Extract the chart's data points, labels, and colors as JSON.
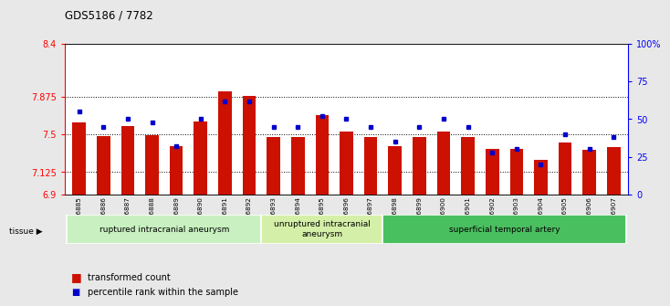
{
  "title": "GDS5186 / 7782",
  "samples": [
    "GSM1306885",
    "GSM1306886",
    "GSM1306887",
    "GSM1306888",
    "GSM1306889",
    "GSM1306890",
    "GSM1306891",
    "GSM1306892",
    "GSM1306893",
    "GSM1306894",
    "GSM1306895",
    "GSM1306896",
    "GSM1306897",
    "GSM1306898",
    "GSM1306899",
    "GSM1306900",
    "GSM1306901",
    "GSM1306902",
    "GSM1306903",
    "GSM1306904",
    "GSM1306905",
    "GSM1306906",
    "GSM1306907"
  ],
  "red_values": [
    7.62,
    7.48,
    7.58,
    7.49,
    7.38,
    7.63,
    7.93,
    7.88,
    7.47,
    7.47,
    7.69,
    7.53,
    7.47,
    7.38,
    7.47,
    7.53,
    7.47,
    7.35,
    7.35,
    7.24,
    7.42,
    7.34,
    7.37
  ],
  "blue_pct": [
    55,
    45,
    50,
    48,
    32,
    50,
    62,
    62,
    45,
    45,
    52,
    50,
    45,
    35,
    45,
    50,
    45,
    28,
    30,
    20,
    40,
    30,
    38
  ],
  "ylim_left": [
    6.9,
    8.4
  ],
  "ylim_right": [
    0,
    100
  ],
  "grid_lines": [
    7.125,
    7.5,
    7.875
  ],
  "bar_color": "#cc1100",
  "blue_color": "#0000cc",
  "bar_width": 0.55,
  "bg_color": "#e8e8e8",
  "plot_bg": "#ffffff",
  "group_data": [
    {
      "label": "ruptured intracranial aneurysm",
      "start": 0,
      "end": 8,
      "color": "#c8f0c0"
    },
    {
      "label": "unruptured intracranial\naneurysm",
      "start": 8,
      "end": 13,
      "color": "#d8f0b0"
    },
    {
      "label": "superficial temporal artery",
      "start": 13,
      "end": 23,
      "color": "#50be68"
    }
  ]
}
